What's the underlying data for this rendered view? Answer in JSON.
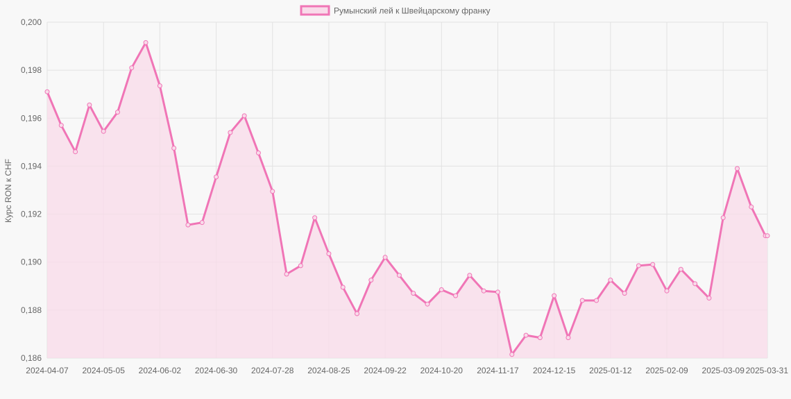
{
  "chart_data": {
    "type": "area",
    "legend": {
      "label": "Румынский лей к Швейцарскому франку",
      "placement": "top-center"
    },
    "ylabel": "Курс RON к CHF",
    "xlabel": "",
    "ylim": [
      0.186,
      0.2
    ],
    "y_ticks": [
      "0,186",
      "0,188",
      "0,190",
      "0,192",
      "0,194",
      "0,196",
      "0,198",
      "0,200"
    ],
    "y_tick_values": [
      0.186,
      0.188,
      0.19,
      0.192,
      0.194,
      0.196,
      0.198,
      0.2
    ],
    "x_ticks": [
      "2024-04-07",
      "2024-05-05",
      "2024-06-02",
      "2024-06-30",
      "2024-07-28",
      "2024-08-25",
      "2024-09-22",
      "2024-10-20",
      "2024-11-17",
      "2024-12-15",
      "2025-01-12",
      "2025-02-09",
      "2025-03-09",
      "2025-03-31"
    ],
    "grid": true,
    "colors": {
      "line": "#f075b6",
      "fill": "#f9dbea",
      "grid": "#e2e2e2",
      "background": "#f8f8f8",
      "text": "#666666"
    },
    "series": [
      {
        "name": "Румынский лей к Швейцарскому франку",
        "x": [
          "2024-04-07",
          "2024-04-14",
          "2024-04-21",
          "2024-04-28",
          "2024-05-05",
          "2024-05-12",
          "2024-05-19",
          "2024-05-26",
          "2024-06-02",
          "2024-06-09",
          "2024-06-16",
          "2024-06-23",
          "2024-06-30",
          "2024-07-07",
          "2024-07-14",
          "2024-07-21",
          "2024-07-28",
          "2024-08-04",
          "2024-08-11",
          "2024-08-18",
          "2024-08-25",
          "2024-09-01",
          "2024-09-08",
          "2024-09-15",
          "2024-09-22",
          "2024-09-29",
          "2024-10-06",
          "2024-10-13",
          "2024-10-20",
          "2024-10-27",
          "2024-11-03",
          "2024-11-10",
          "2024-11-17",
          "2024-11-24",
          "2024-12-01",
          "2024-12-08",
          "2024-12-15",
          "2024-12-22",
          "2024-12-29",
          "2025-01-05",
          "2025-01-12",
          "2025-01-19",
          "2025-01-26",
          "2025-02-02",
          "2025-02-09",
          "2025-02-16",
          "2025-02-23",
          "2025-03-02",
          "2025-03-09",
          "2025-03-16",
          "2025-03-23",
          "2025-03-30",
          "2025-03-31"
        ],
        "values": [
          0.1971,
          0.1957,
          0.1946,
          0.19655,
          0.19545,
          0.19625,
          0.1981,
          0.19915,
          0.19735,
          0.19475,
          0.19155,
          0.19165,
          0.19355,
          0.1954,
          0.1961,
          0.19455,
          0.19295,
          0.1895,
          0.18985,
          0.19185,
          0.19035,
          0.18895,
          0.18785,
          0.18925,
          0.1902,
          0.18945,
          0.1887,
          0.18825,
          0.18885,
          0.1886,
          0.18945,
          0.1888,
          0.18875,
          0.18615,
          0.18695,
          0.18685,
          0.1886,
          0.18685,
          0.1884,
          0.1884,
          0.18925,
          0.1887,
          0.18985,
          0.1899,
          0.1888,
          0.1897,
          0.1891,
          0.1885,
          0.19185,
          0.1939,
          0.1923,
          0.1911,
          0.1911
        ]
      }
    ]
  }
}
